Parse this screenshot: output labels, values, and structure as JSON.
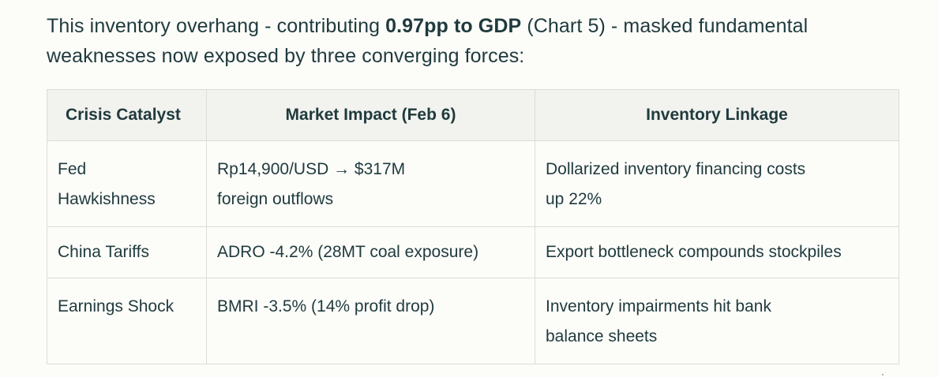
{
  "intro": {
    "before": "This inventory overhang - contributing ",
    "bold": "0.97pp to GDP",
    "after": " (Chart 5) - masked fundamental weaknesses now exposed by three converging forces:"
  },
  "table": {
    "headers": [
      "Crisis Catalyst",
      "Market Impact (Feb 6)",
      "Inventory Linkage"
    ],
    "rows": [
      {
        "catalyst": [
          "Fed",
          "Hawkishness"
        ],
        "impact": [
          "Rp14,900/USD → $317M",
          "foreign outflows"
        ],
        "linkage": [
          "Dollarized inventory financing costs",
          "up 22%"
        ]
      },
      {
        "catalyst": [
          "China Tariffs"
        ],
        "impact": [
          "ADRO -4.2% (28MT coal exposure)"
        ],
        "linkage": [
          "Export bottleneck compounds stockpiles"
        ]
      },
      {
        "catalyst": [
          "Earnings Shock"
        ],
        "impact": [
          "BMRI -3.5% (14% profit drop)"
        ],
        "linkage": [
          "Inventory impairments hit bank",
          "balance sheets"
        ]
      }
    ]
  }
}
